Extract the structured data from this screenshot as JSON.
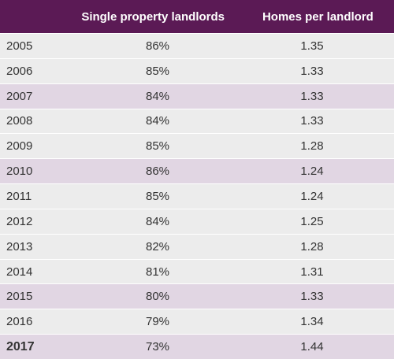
{
  "colors": {
    "header_bg": "#5b1a55",
    "row_plain": "#ececec",
    "row_highlight": "#e1d6e3"
  },
  "chart_data": {
    "type": "table",
    "columns": [
      "",
      "Single property landlords",
      "Homes per landlord"
    ],
    "rows": [
      {
        "year": "2005",
        "single": "86%",
        "homes": "1.35",
        "highlight": false,
        "bold": false
      },
      {
        "year": "2006",
        "single": "85%",
        "homes": "1.33",
        "highlight": false,
        "bold": false
      },
      {
        "year": "2007",
        "single": "84%",
        "homes": "1.33",
        "highlight": true,
        "bold": false
      },
      {
        "year": "2008",
        "single": "84%",
        "homes": "1.33",
        "highlight": false,
        "bold": false
      },
      {
        "year": "2009",
        "single": "85%",
        "homes": "1.28",
        "highlight": false,
        "bold": false
      },
      {
        "year": "2010",
        "single": "86%",
        "homes": "1.24",
        "highlight": true,
        "bold": false
      },
      {
        "year": "2011",
        "single": "85%",
        "homes": "1.24",
        "highlight": false,
        "bold": false
      },
      {
        "year": "2012",
        "single": "84%",
        "homes": "1.25",
        "highlight": false,
        "bold": false
      },
      {
        "year": "2013",
        "single": "82%",
        "homes": "1.28",
        "highlight": false,
        "bold": false
      },
      {
        "year": "2014",
        "single": "81%",
        "homes": "1.31",
        "highlight": false,
        "bold": false
      },
      {
        "year": "2015",
        "single": "80%",
        "homes": "1.33",
        "highlight": true,
        "bold": false
      },
      {
        "year": "2016",
        "single": "79%",
        "homes": "1.34",
        "highlight": false,
        "bold": false
      },
      {
        "year": "2017",
        "single": "73%",
        "homes": "1.44",
        "highlight": true,
        "bold": true
      }
    ]
  }
}
